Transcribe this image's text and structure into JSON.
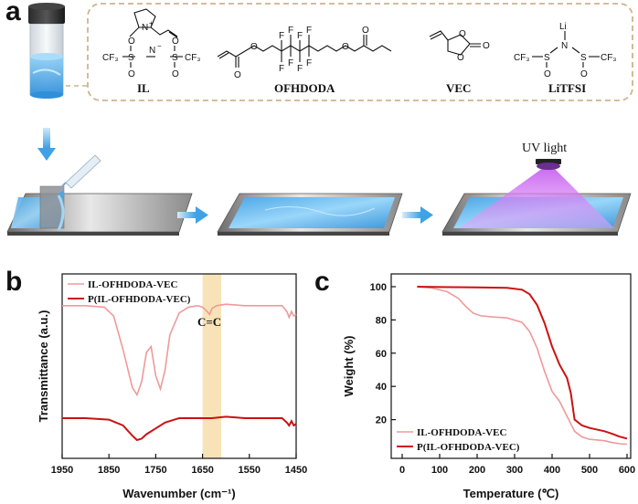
{
  "panels": {
    "a": "a",
    "b": "b",
    "c": "c"
  },
  "panel_a": {
    "chemicals": [
      {
        "name": "IL"
      },
      {
        "name": "OFHDODA"
      },
      {
        "name": "VEC"
      },
      {
        "name": "LiTFSI"
      }
    ],
    "atoms": {
      "n_plus": "N",
      "plus": "+",
      "n_minus": "N",
      "minus": "−",
      "cf3": "CF₃",
      "s": "S",
      "o": "O",
      "f": "F",
      "li": "Li"
    },
    "uv_label": "UV light",
    "colors": {
      "liquid": "#5bb6ee",
      "film": "#6cc4f4",
      "uv": "#d67ef2",
      "arrow": "#5fb3e8",
      "box": "#cdb48e"
    }
  },
  "chart_data": [
    {
      "id": "b",
      "type": "line",
      "xlabel": "Wavenumber (cm⁻¹)",
      "ylabel": "Transmittance (a.u.)",
      "xlim": [
        1950,
        1450
      ],
      "xticks": [
        1950,
        1850,
        1750,
        1650,
        1550,
        1450
      ],
      "annotation": "C=C",
      "highlight_band": [
        1650,
        1610
      ],
      "series": [
        {
          "name": "IL-OFHDODA-VEC",
          "color": "#ef9a9a",
          "x": [
            1950,
            1900,
            1860,
            1840,
            1820,
            1800,
            1790,
            1780,
            1770,
            1760,
            1750,
            1740,
            1730,
            1720,
            1700,
            1680,
            1660,
            1650,
            1640,
            1635,
            1630,
            1620,
            1600,
            1560,
            1520,
            1480,
            1470,
            1465,
            1460,
            1455,
            1450
          ],
          "y": [
            0.92,
            0.92,
            0.91,
            0.85,
            0.62,
            0.36,
            0.31,
            0.4,
            0.6,
            0.64,
            0.44,
            0.35,
            0.48,
            0.72,
            0.87,
            0.91,
            0.92,
            0.91,
            0.88,
            0.86,
            0.9,
            0.92,
            0.93,
            0.92,
            0.92,
            0.92,
            0.88,
            0.84,
            0.88,
            0.85,
            0.86
          ]
        },
        {
          "name": "P(IL-OFHDODA-VEC)",
          "color": "#cc1111",
          "x": [
            1950,
            1900,
            1850,
            1820,
            1800,
            1790,
            1780,
            1770,
            1750,
            1730,
            1710,
            1700,
            1680,
            1650,
            1630,
            1600,
            1560,
            1520,
            1480,
            1470,
            1465,
            1460,
            1455,
            1450
          ],
          "y": [
            0.15,
            0.15,
            0.14,
            0.1,
            0.03,
            0.0,
            0.01,
            0.04,
            0.08,
            0.12,
            0.14,
            0.15,
            0.15,
            0.15,
            0.15,
            0.16,
            0.15,
            0.15,
            0.15,
            0.12,
            0.1,
            0.13,
            0.1,
            0.11
          ]
        }
      ]
    },
    {
      "id": "c",
      "type": "line",
      "xlabel": "Temperature (℃)",
      "ylabel": "Weight (%)",
      "xlim": [
        0,
        600
      ],
      "ylim": [
        0,
        100
      ],
      "xticks": [
        0,
        100,
        200,
        300,
        400,
        500,
        600
      ],
      "yticks": [
        20,
        40,
        60,
        80,
        100
      ],
      "series": [
        {
          "name": "IL-OFHDODA-VEC",
          "color": "#ef9a9a",
          "x": [
            40,
            80,
            120,
            150,
            170,
            190,
            210,
            240,
            280,
            320,
            340,
            360,
            380,
            400,
            420,
            440,
            460,
            480,
            500,
            540,
            560,
            580,
            600
          ],
          "y": [
            100,
            99.2,
            97,
            93,
            88,
            84,
            82.5,
            81.8,
            81.2,
            78.5,
            73,
            63,
            49,
            37,
            31,
            22,
            13,
            9.5,
            8.2,
            7.3,
            6.2,
            5.5,
            5.2
          ]
        },
        {
          "name": "P(IL-OFHDODA-VEC)",
          "color": "#cc1111",
          "x": [
            40,
            100,
            200,
            280,
            320,
            340,
            360,
            380,
            400,
            420,
            440,
            450,
            460,
            480,
            500,
            540,
            560,
            580,
            600
          ],
          "y": [
            100,
            99.8,
            99.6,
            99.3,
            98.2,
            95.5,
            89,
            78,
            64,
            53,
            45,
            36,
            20,
            16.5,
            15,
            13,
            11.5,
            9.8,
            8.6
          ]
        }
      ]
    }
  ]
}
